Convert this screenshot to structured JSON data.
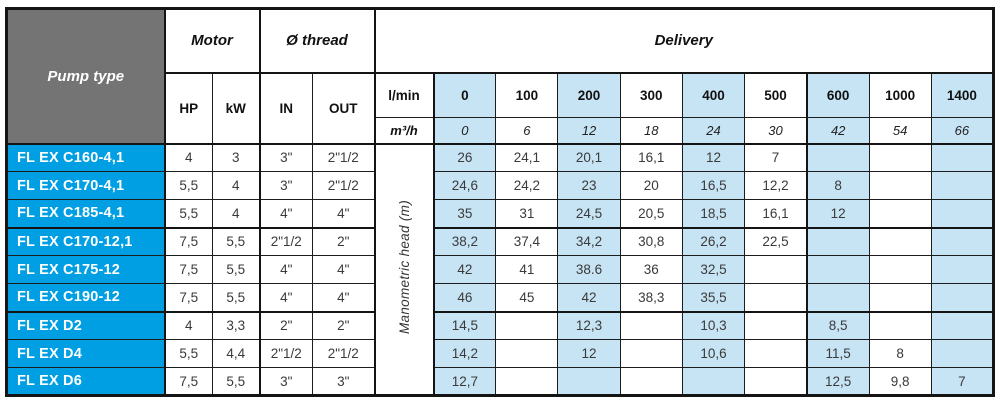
{
  "table": {
    "pump_type_label": "Pump type",
    "motor_label": "Motor",
    "thread_label": "Ø thread",
    "delivery_label": "Delivery",
    "hp_label": "HP",
    "kw_label": "kW",
    "in_label": "IN",
    "out_label": "OUT",
    "lmin_label": "l/min",
    "m3h_label": "m³/h",
    "manometric_label": "Manometric head (m)",
    "delivery_lmin": [
      "0",
      "100",
      "200",
      "300",
      "400",
      "500",
      "600",
      "1000",
      "1400"
    ],
    "delivery_m3h": [
      "0",
      "6",
      "12",
      "18",
      "24",
      "30",
      "42",
      "54",
      "66"
    ],
    "rows": [
      {
        "pump": "FL EX C160-4,1",
        "hp": "4",
        "kw": "3",
        "in": "3\"",
        "out": "2\"1/2",
        "head": [
          "26",
          "24,1",
          "20,1",
          "16,1",
          "12",
          "7",
          "",
          "",
          ""
        ]
      },
      {
        "pump": "FL EX C170-4,1",
        "hp": "5,5",
        "kw": "4",
        "in": "3\"",
        "out": "2\"1/2",
        "head": [
          "24,6",
          "24,2",
          "23",
          "20",
          "16,5",
          "12,2",
          "8",
          "",
          ""
        ]
      },
      {
        "pump": "FL EX C185-4,1",
        "hp": "5,5",
        "kw": "4",
        "in": "4\"",
        "out": "4\"",
        "head": [
          "35",
          "31",
          "24,5",
          "20,5",
          "18,5",
          "16,1",
          "12",
          "",
          ""
        ]
      },
      {
        "pump": "FL EX C170-12,1",
        "hp": "7,5",
        "kw": "5,5",
        "in": "2\"1/2",
        "out": "2\"",
        "head": [
          "38,2",
          "37,4",
          "34,2",
          "30,8",
          "26,2",
          "22,5",
          "",
          "",
          ""
        ]
      },
      {
        "pump": "FL EX C175-12",
        "hp": "7,5",
        "kw": "5,5",
        "in": "4\"",
        "out": "4\"",
        "head": [
          "42",
          "41",
          "38.6",
          "36",
          "32,5",
          "",
          "",
          "",
          ""
        ]
      },
      {
        "pump": "FL EX C190-12",
        "hp": "7,5",
        "kw": "5,5",
        "in": "4\"",
        "out": "4\"",
        "head": [
          "46",
          "45",
          "42",
          "38,3",
          "35,5",
          "",
          "",
          "",
          ""
        ]
      },
      {
        "pump": "FL EX D2",
        "hp": "4",
        "kw": "3,3",
        "in": "2\"",
        "out": "2\"",
        "head": [
          "14,5",
          "",
          "12,3",
          "",
          "10,3",
          "",
          "8,5",
          "",
          ""
        ]
      },
      {
        "pump": "FL EX D4",
        "hp": "5,5",
        "kw": "4,4",
        "in": "2\"1/2",
        "out": "2\"1/2",
        "head": [
          "14,2",
          "",
          "12",
          "",
          "10,6",
          "",
          "11,5",
          "8",
          ""
        ]
      },
      {
        "pump": "FL EX D6",
        "hp": "7,5",
        "kw": "5,5",
        "in": "3\"",
        "out": "3\"",
        "head": [
          "12,7",
          "",
          "",
          "",
          "",
          "",
          "12,5",
          "9,8",
          "7"
        ]
      }
    ],
    "group_start_rows": [
      3,
      6
    ]
  },
  "colors": {
    "pump_cell_blue": "#009FE3",
    "stripe_blue": "#C7E4F5",
    "header_gray": "#747474",
    "border_black": "#141414"
  }
}
